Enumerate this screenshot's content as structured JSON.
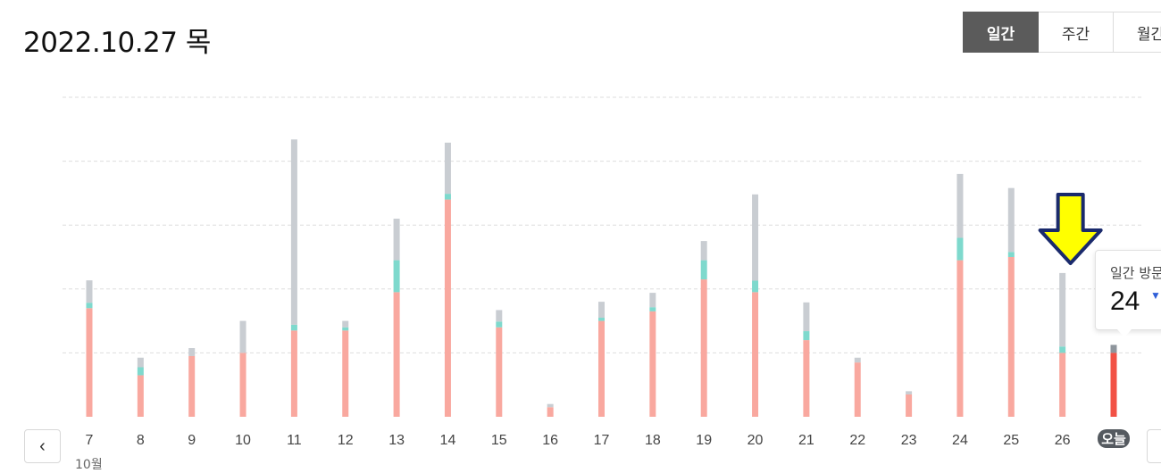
{
  "header": {
    "date": "2022.10.27 목"
  },
  "tabs": [
    {
      "label": "일간"
    },
    {
      "label": "주간"
    },
    {
      "label": "월간"
    }
  ],
  "month_label": "10월",
  "today_label": "오늘",
  "tooltip": {
    "label": "일간 방문",
    "value": "24"
  },
  "colors": {
    "bar_main": "#f9a89f",
    "bar_mid": "#7ed9cd",
    "bar_top": "#c9cdd2",
    "today_bar": "#f25145",
    "today_top": "#8e959c",
    "grid": "#dddddd",
    "arrow_fill": "#ffff00"
  },
  "chart_data": {
    "type": "bar",
    "stacked": true,
    "categories": [
      "7",
      "8",
      "9",
      "10",
      "11",
      "12",
      "13",
      "14",
      "15",
      "16",
      "17",
      "18",
      "19",
      "20",
      "21",
      "22",
      "23",
      "24",
      "25",
      "26",
      "오늘"
    ],
    "series": [
      {
        "values": [
          34,
          13,
          19,
          20,
          27,
          27,
          39,
          68,
          28,
          3,
          30,
          33,
          43,
          39,
          24,
          17,
          7,
          49,
          50,
          20,
          20
        ]
      },
      {
        "values": [
          1.7,
          2.5,
          0,
          0,
          1.8,
          1,
          10,
          1.8,
          1.8,
          0,
          1,
          1.3,
          6,
          3.6,
          2.8,
          0,
          0,
          7,
          1.6,
          2,
          0
        ]
      },
      {
        "values": [
          7,
          3,
          2.5,
          10,
          58,
          2,
          13,
          16,
          3.6,
          1,
          5,
          4.5,
          6,
          27,
          9,
          1.5,
          1,
          20,
          20,
          23,
          2.5
        ]
      }
    ],
    "ylim": [
      0,
      100
    ],
    "grid": true,
    "highlight": {
      "category": "26",
      "marker": "down-arrow"
    }
  }
}
